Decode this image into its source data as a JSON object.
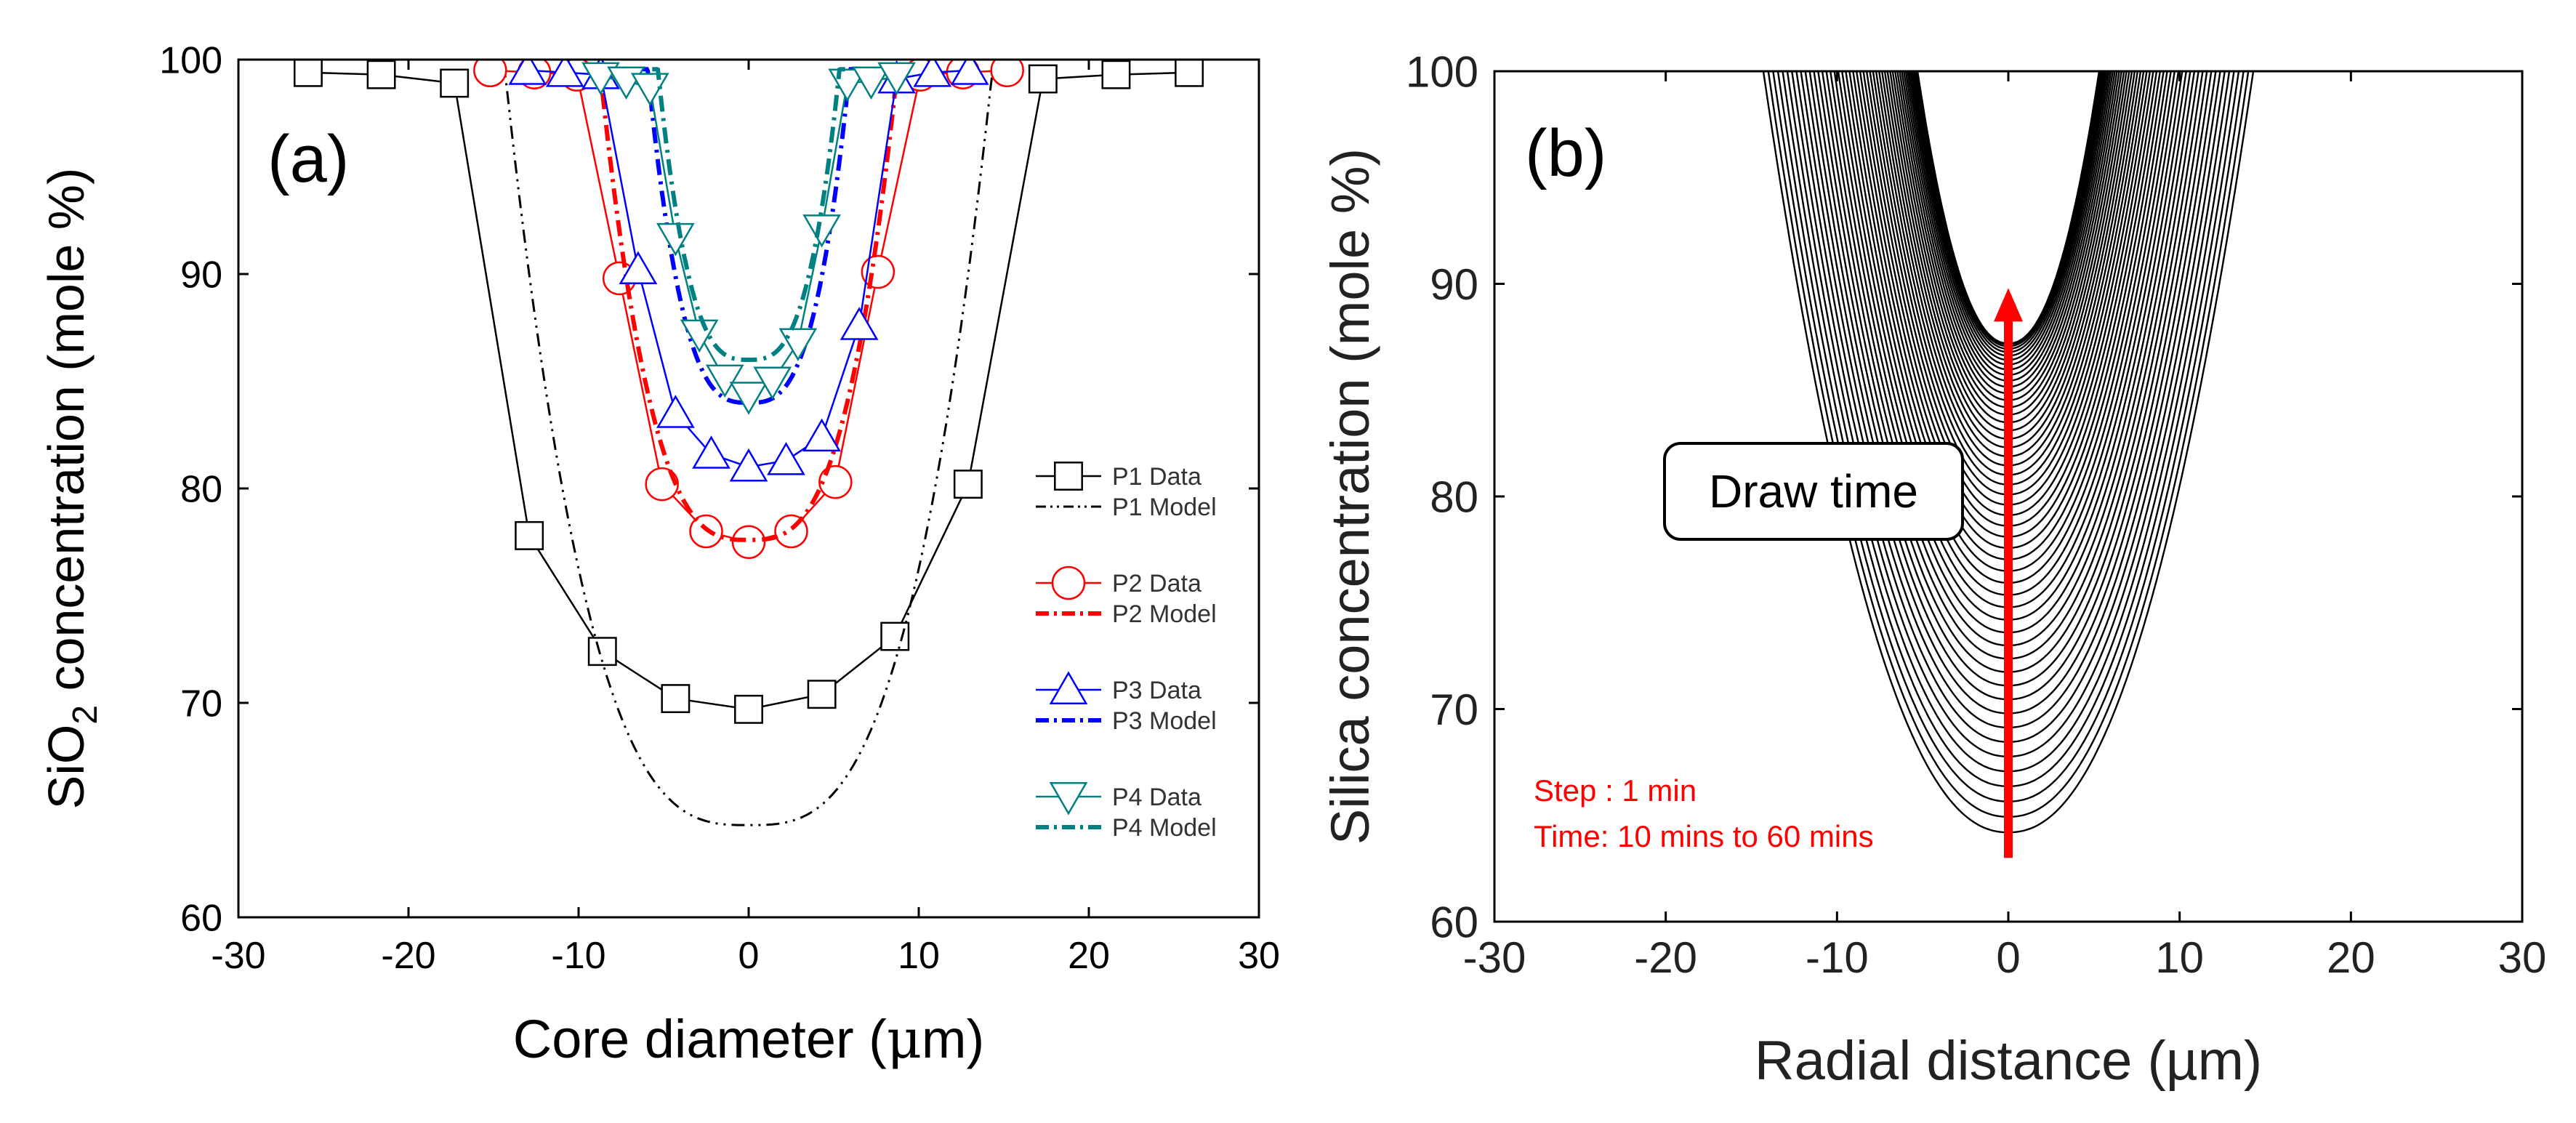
{
  "chart_data": [
    {
      "type": "line",
      "panel_label": "(a)",
      "xlabel_prefix": "Core diameter (",
      "xlabel_mu": "μ",
      "xlabel_suffix": "m)",
      "ylabel_prefix": "SiO",
      "ylabel_subscript": "2",
      "ylabel_suffix": " concentration (mole %)",
      "xlim": [
        -30,
        30
      ],
      "ylim": [
        60,
        100
      ],
      "xticks": [
        -30,
        -20,
        -10,
        0,
        10,
        20,
        30
      ],
      "xtick_labels": [
        "-30",
        "-20",
        "-10",
        "0",
        "10",
        "20",
        "30"
      ],
      "yticks": [
        60,
        70,
        80,
        90,
        100
      ],
      "ytick_labels": [
        "60",
        "70",
        "80",
        "90",
        "100"
      ],
      "series": [
        {
          "name": "P1 Data",
          "kind": "data",
          "marker": "square",
          "color": "#000000",
          "x": [
            -25.9,
            -21.6,
            -17.3,
            -12.9,
            -8.6,
            -4.3,
            0,
            4.3,
            8.6,
            12.9,
            17.3,
            21.6,
            25.9
          ],
          "y": [
            99.4,
            99.3,
            98.9,
            77.8,
            72.4,
            70.2,
            69.7,
            70.4,
            73.1,
            80.2,
            99.1,
            99.3,
            99.4
          ]
        },
        {
          "name": "P1 Model",
          "kind": "model",
          "color": "#000000",
          "dash": "dashdotdot",
          "shape": {
            "min": 64.3,
            "halfwidth": 14.4,
            "power": 3
          }
        },
        {
          "name": "P2 Data",
          "kind": "data",
          "marker": "circle",
          "color": "#ff0000",
          "x": [
            -15.2,
            -12.6,
            -10.1,
            -7.6,
            -5.1,
            -2.5,
            0,
            2.5,
            5.1,
            7.6,
            10.1,
            12.6,
            15.2
          ],
          "y": [
            99.5,
            99.4,
            99.3,
            89.8,
            80.2,
            78.0,
            77.5,
            78.0,
            80.3,
            90.1,
            99.3,
            99.4,
            99.5
          ]
        },
        {
          "name": "P2 Model",
          "kind": "model",
          "color": "#ff0000",
          "dash": "dashdot",
          "shape": {
            "min": 77.6,
            "halfwidth": 8.8,
            "power": 3
          }
        },
        {
          "name": "P3 Data",
          "kind": "data",
          "marker": "triangle-up",
          "color": "#0000ff",
          "x": [
            -13.0,
            -10.8,
            -8.7,
            -6.5,
            -4.3,
            -2.2,
            0,
            2.2,
            4.3,
            6.5,
            8.7,
            10.8,
            13.0
          ],
          "y": [
            99.5,
            99.4,
            99.3,
            90.2,
            83.5,
            81.6,
            81.0,
            81.3,
            82.4,
            87.6,
            99.1,
            99.4,
            99.5
          ]
        },
        {
          "name": "P3 Model",
          "kind": "model",
          "color": "#0000ff",
          "dash": "dashdot",
          "shape": {
            "min": 84.0,
            "halfwidth": 6.0,
            "power": 3
          }
        },
        {
          "name": "P4 Data",
          "kind": "data",
          "marker": "triangle-down",
          "color": "#008080",
          "x": [
            -8.7,
            -7.2,
            -5.8,
            -4.3,
            -2.9,
            -1.4,
            0,
            1.4,
            2.9,
            4.3,
            5.8,
            7.2,
            8.7
          ],
          "y": [
            99.2,
            99.0,
            98.7,
            91.7,
            87.2,
            85.1,
            84.3,
            85.0,
            86.8,
            92.1,
            98.9,
            99.0,
            99.2
          ]
        },
        {
          "name": "P4 Model",
          "kind": "model",
          "color": "#008080",
          "dash": "dashdot",
          "shape": {
            "min": 86.0,
            "halfwidth": 5.4,
            "power": 3
          }
        }
      ],
      "legend": {
        "placement": "center-right",
        "entries": [
          "P1 Data",
          "P1 Model",
          "P2 Data",
          "P2 Model",
          "P3 Data",
          "P3 Model",
          "P4 Data",
          "P4 Model"
        ]
      }
    },
    {
      "type": "line",
      "panel_label": "(b)",
      "xlabel": "Radial distance (µm)",
      "ylabel": "Silica concentration (mole %)",
      "xlim": [
        -30,
        30
      ],
      "ylim": [
        60,
        100
      ],
      "xticks": [
        -30,
        -20,
        -10,
        0,
        10,
        20,
        30
      ],
      "xtick_labels": [
        "-30",
        "-20",
        "-10",
        "0",
        "10",
        "20",
        "30"
      ],
      "yticks": [
        60,
        70,
        80,
        90,
        100
      ],
      "ytick_labels": [
        "60",
        "70",
        "80",
        "90",
        "100"
      ],
      "curve_family": {
        "count": 51,
        "time_start_min": 10,
        "time_end_min": 60,
        "time_step_min": 1,
        "min_first": 64.2,
        "min_last": 87.2,
        "halfwidth_first": 14.3,
        "halfwidth_last": 5.3,
        "power": 2.2,
        "color": "#000000"
      },
      "annotation_box": "Draw time",
      "arrow": {
        "x": 0,
        "y_from": 63.0,
        "y_to": 89.8,
        "color": "#ff0000"
      },
      "notes": [
        "Step : 1 min",
        "Time: 10 mins to 60 mins"
      ],
      "notes_color": "#ff0000"
    }
  ]
}
